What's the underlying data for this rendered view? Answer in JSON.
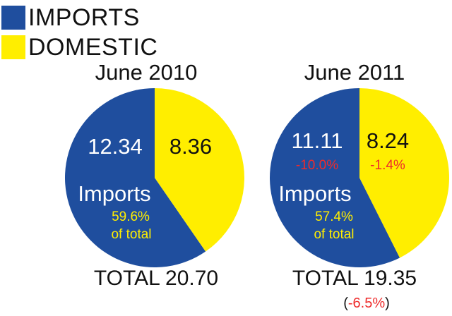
{
  "colors": {
    "imports": "#1f4e9e",
    "domestic": "#ffee00",
    "negative": "#ee2b2b",
    "highlight": "#ffee00",
    "text": "#111111"
  },
  "legend": {
    "imports_label": "IMPORTS",
    "domestic_label": "DOMESTIC"
  },
  "chart_data": [
    {
      "type": "pie",
      "title": "June 2010",
      "series": [
        {
          "name": "IMPORTS",
          "value": 12.34
        },
        {
          "name": "DOMESTIC",
          "value": 8.36
        }
      ],
      "value_labels": {
        "imports": "12.34",
        "domestic": "8.36"
      },
      "change_labels": {
        "imports": "",
        "domestic": ""
      },
      "inner_label": "Imports",
      "share_label": "59.6%",
      "share_suffix": "of total",
      "total_label": "TOTAL 20.70",
      "total_change_label": ""
    },
    {
      "type": "pie",
      "title": "June 2011",
      "series": [
        {
          "name": "IMPORTS",
          "value": 11.11
        },
        {
          "name": "DOMESTIC",
          "value": 8.24
        }
      ],
      "value_labels": {
        "imports": "11.11",
        "domestic": "8.24"
      },
      "change_labels": {
        "imports": "-10.0%",
        "domestic": "-1.4%"
      },
      "inner_label": "Imports",
      "share_label": "57.4%",
      "share_suffix": "of total",
      "total_label": "TOTAL 19.35",
      "total_change_label": "-6.5%"
    }
  ]
}
